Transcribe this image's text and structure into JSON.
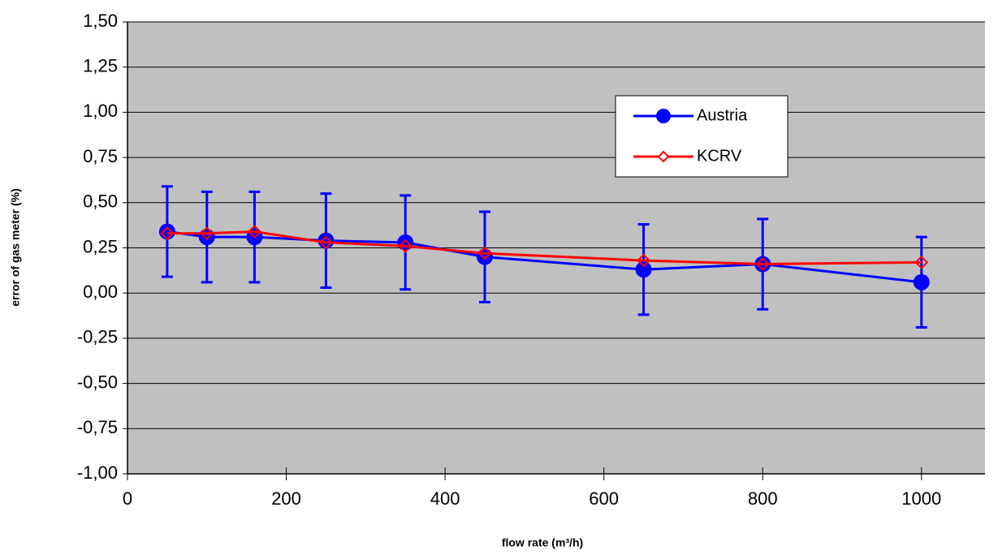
{
  "chart_data": {
    "type": "line",
    "xlabel": "flow rate (m³/h)",
    "ylabel": "error of  gas meter (%)",
    "xlim": [
      0,
      1080
    ],
    "xticks": [
      0,
      200,
      400,
      600,
      800,
      1000
    ],
    "ylim": [
      -1,
      1.5
    ],
    "yticks": [
      {
        "value": -1,
        "label": "-1,00"
      },
      {
        "value": -0.75,
        "label": "-0,75"
      },
      {
        "value": -0.5,
        "label": "-0,50"
      },
      {
        "value": -0.25,
        "label": "-0,25"
      },
      {
        "value": 0,
        "label": "0,00"
      },
      {
        "value": 0.25,
        "label": "0,25"
      },
      {
        "value": 0.5,
        "label": "0,50"
      },
      {
        "value": 0.75,
        "label": "0,75"
      },
      {
        "value": 1,
        "label": "1,00"
      },
      {
        "value": 1.25,
        "label": "1,25"
      },
      {
        "value": 1.5,
        "label": "1,50"
      }
    ],
    "grid": true,
    "legend": "upper right",
    "x": [
      50,
      100,
      160,
      250,
      350,
      450,
      650,
      800,
      1000
    ],
    "series": [
      {
        "name": "Austria",
        "color": "#0000ff",
        "marker": "circle",
        "values": [
          0.34,
          0.31,
          0.31,
          0.29,
          0.28,
          0.2,
          0.13,
          0.16,
          0.06
        ],
        "errors": [
          0.25,
          0.25,
          0.25,
          0.26,
          0.26,
          0.25,
          0.25,
          0.25,
          0.25
        ]
      },
      {
        "name": "KCRV",
        "color": "#ff0000",
        "marker": "diamond",
        "values": [
          0.33,
          0.33,
          0.34,
          0.28,
          0.26,
          0.22,
          0.18,
          0.16,
          0.17
        ]
      }
    ]
  }
}
